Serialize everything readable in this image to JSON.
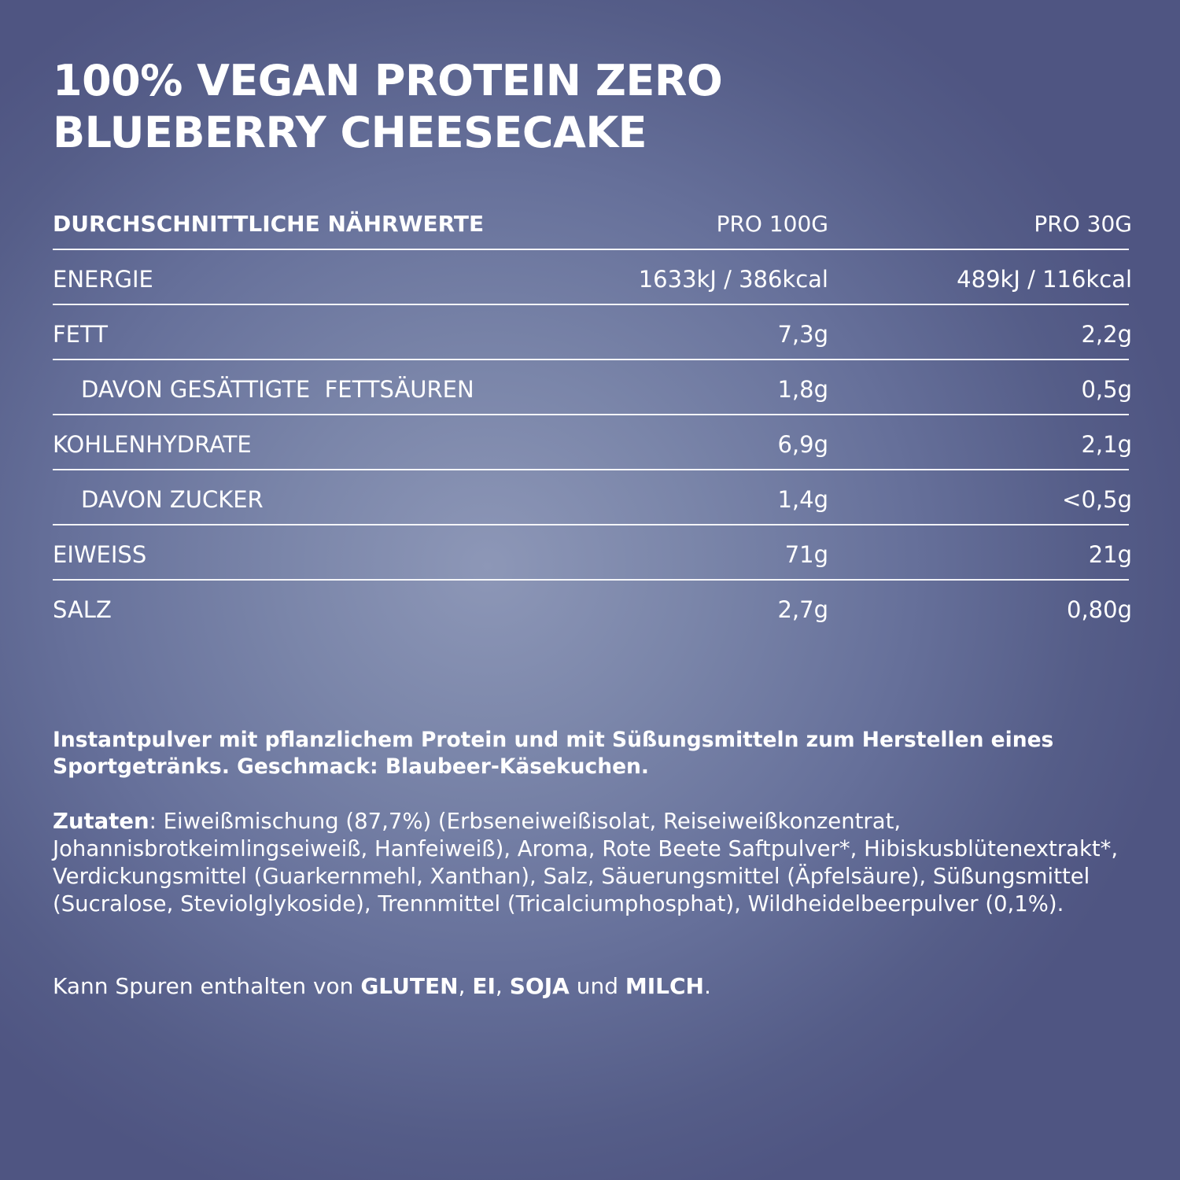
{
  "title": {
    "line1": "100% VEGAN PROTEIN ZERO",
    "line2": "BLUEBERRY CHEESECAKE"
  },
  "table": {
    "headers": {
      "label": "DURCHSCHNITTLICHE NÄHRWERTE",
      "per_100g": "PRO 100G",
      "per_30g": "PRO 30G"
    },
    "rows": [
      {
        "label": "ENERGIE",
        "per_100g": "1633kJ / 386kcal",
        "per_30g": "489kJ / 116kcal",
        "indent": false
      },
      {
        "label": "FETT",
        "per_100g": "7,3g",
        "per_30g": "2,2g",
        "indent": false
      },
      {
        "label": "DAVON GESÄTTIGTE  FETTSÄUREN",
        "per_100g": "1,8g",
        "per_30g": "0,5g",
        "indent": true
      },
      {
        "label": "KOHLENHYDRATE",
        "per_100g": "6,9g",
        "per_30g": "2,1g",
        "indent": false
      },
      {
        "label": "DAVON ZUCKER",
        "per_100g": "1,4g",
        "per_30g": "<0,5g",
        "indent": true
      },
      {
        "label": "EIWEISS",
        "per_100g": "71g",
        "per_30g": "21g",
        "indent": false
      },
      {
        "label": "SALZ",
        "per_100g": "2,7g",
        "per_30g": "0,80g",
        "indent": false
      }
    ]
  },
  "description": "Instantpulver mit pflanzlichem Protein und mit Süßungsmitteln zum Herstellen eines Sportgetränks. Geschmack: Blaubeer-Käsekuchen.",
  "ingredients": {
    "label": "Zutaten",
    "text": ": Eiweißmischung (87,7%) (Erbseneiweißisolat, Reiseiweißkonzentrat, Johannisbrotkeimlingseiweiß, Hanfeiweiß), Aroma, Rote Beete Saftpulver*, Hibiskusblütenextrakt*, Verdickungsmittel (Guarkernmehl, Xanthan), Salz, Säuerungsmittel (Äpfelsäure), Süßungsmittel (Sucralose, Steviolglykoside), Trennmittel (Tricalciumphosphat), Wildheidelbeerpulver (0,1%)."
  },
  "allergens": {
    "prefix": "Kann Spuren enthalten von ",
    "a1": "GLUTEN",
    "sep1": ", ",
    "a2": "EI",
    "sep2": ", ",
    "a3": "SOJA",
    "sep3": " und ",
    "a4": "MILCH",
    "suffix": "."
  }
}
